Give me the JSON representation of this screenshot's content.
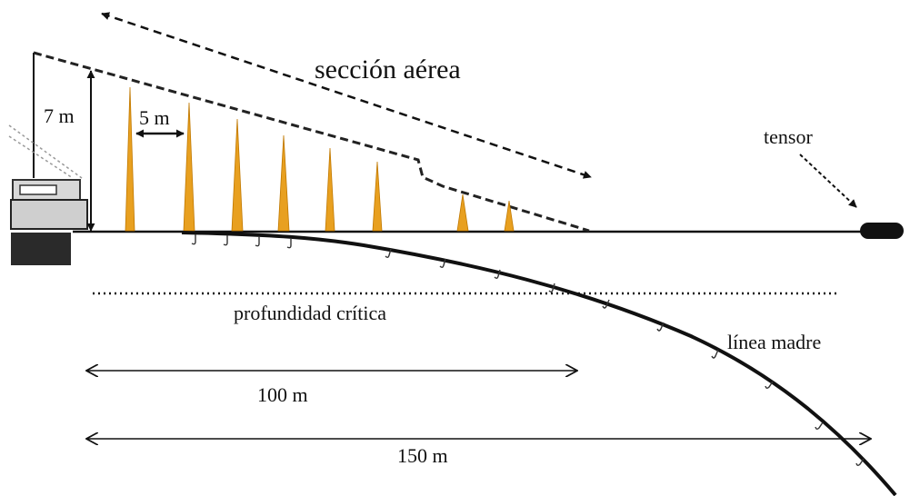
{
  "labels": {
    "aerial_section": "sección aérea",
    "height": "7 m",
    "spacing": "5 m",
    "tensor": "tensor",
    "critical_depth": "profundidad crítica",
    "mainline": "línea madre",
    "dist_100": "100 m",
    "dist_150": "150 m"
  },
  "colors": {
    "streamer": "#e8a020",
    "line": "#111111",
    "hook": "#333333"
  }
}
